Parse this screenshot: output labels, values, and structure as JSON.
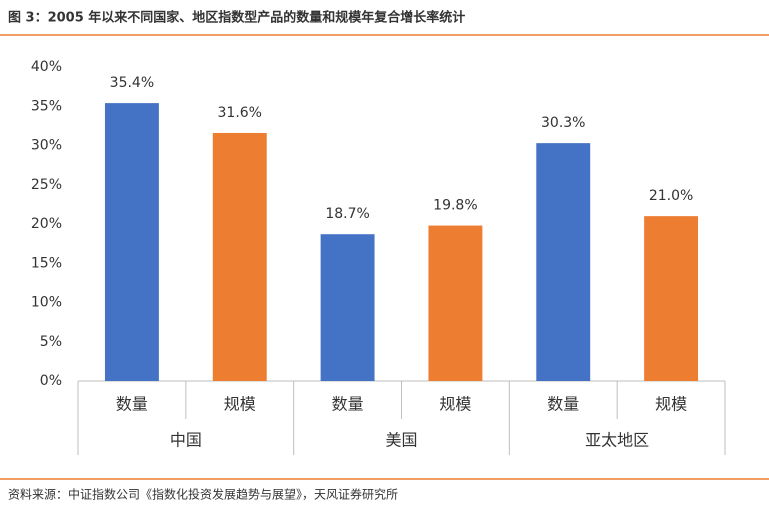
{
  "chart_data": {
    "type": "bar",
    "title": "图 3：2005 年以来不同国家、地区指数型产品的数量和规模年复合增长率统计",
    "source": "资料来源：中证指数公司《指数化投资发展趋势与展望》，天风证券研究所",
    "groups": [
      "中国",
      "美国",
      "亚太地区"
    ],
    "categories": [
      "数量",
      "规模",
      "数量",
      "规模",
      "数量",
      "规模"
    ],
    "values": [
      35.4,
      31.6,
      18.7,
      19.8,
      30.3,
      21.0
    ],
    "value_labels": [
      "35.4%",
      "31.6%",
      "18.7%",
      "19.8%",
      "30.3%",
      "21.0%"
    ],
    "colors": [
      "#4472c4",
      "#ed7d31",
      "#4472c4",
      "#ed7d31",
      "#4472c4",
      "#ed7d31"
    ],
    "ylim": [
      0,
      40
    ],
    "yticks": [
      {
        "value": 0,
        "label": "0%"
      },
      {
        "value": 5,
        "label": "5%"
      },
      {
        "value": 10,
        "label": "10%"
      },
      {
        "value": 15,
        "label": "15%"
      },
      {
        "value": 20,
        "label": "20%"
      },
      {
        "value": 25,
        "label": "25%"
      },
      {
        "value": 30,
        "label": "30%"
      },
      {
        "value": 35,
        "label": "35%"
      },
      {
        "value": 40,
        "label": "40%"
      }
    ]
  }
}
